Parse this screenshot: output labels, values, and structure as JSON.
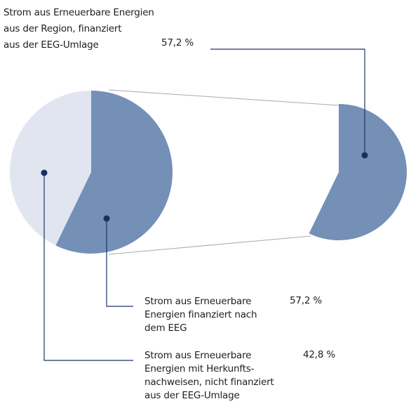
{
  "chart_data": [
    {
      "type": "pie",
      "categories": [
        "Strom aus Erneuerbare\nEnergien finanziert nach\ndem EEG",
        "Strom aus Erneuerbare\nEnergien mit Herkunfts-\nnachweisen, nicht finanziert\naus der EEG-Umlage"
      ],
      "values": [
        57.2,
        42.8
      ],
      "value_labels": [
        "57,2 %",
        "42,8 %"
      ],
      "colors": [
        "#7490b7",
        "#e1e5f0"
      ]
    },
    {
      "type": "pie",
      "categories": [
        "Strom aus Erneuerbare Energien\naus der Region, finanziert\naus der EEG-Umlage"
      ],
      "values": [
        57.2
      ],
      "value_labels": [
        "57,2 %"
      ],
      "colors": [
        "#7490b7"
      ]
    }
  ]
}
